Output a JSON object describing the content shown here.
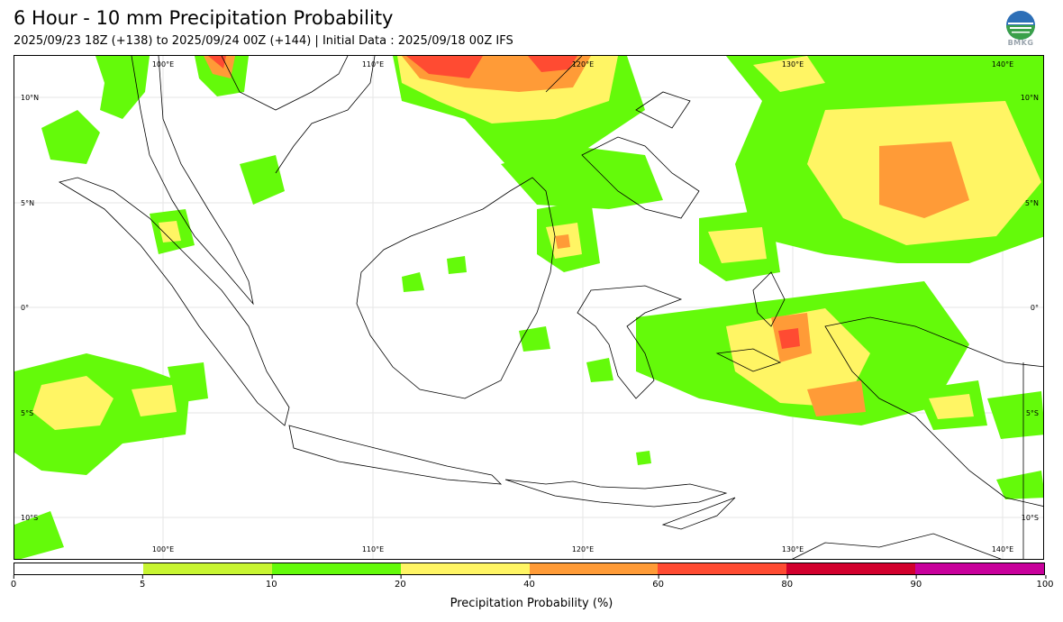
{
  "header": {
    "title": "6 Hour - 10 mm Precipitation Probability",
    "subtitle": "2025/09/23 18Z (+138) to 2025/09/24 00Z (+144) | Initial Data : 2025/09/18 00Z IFS"
  },
  "logo": {
    "text": "BMKG",
    "icon": "bmkg-logo-icon"
  },
  "map": {
    "lon_range": [
      93,
      142
    ],
    "lat_range": [
      -12,
      12
    ],
    "longitude_labels": [
      "100°E",
      "110°E",
      "120°E",
      "130°E",
      "140°E"
    ],
    "latitude_labels": [
      "10°N",
      "5°N",
      "0°",
      "5°S",
      "10°S"
    ],
    "graticule": true
  },
  "colorbar": {
    "label": "Precipitation Probability (%)",
    "ticks": [
      "0",
      "5",
      "10",
      "20",
      "40",
      "60",
      "80",
      "90",
      "100"
    ],
    "bins": [
      {
        "from": 0,
        "to": 5,
        "color": "#ffffff"
      },
      {
        "from": 5,
        "to": 10,
        "color": "#c8f532"
      },
      {
        "from": 10,
        "to": 20,
        "color": "#64fa0a"
      },
      {
        "from": 20,
        "to": 40,
        "color": "#fff564"
      },
      {
        "from": 40,
        "to": 60,
        "color": "#ff9b37"
      },
      {
        "from": 60,
        "to": 80,
        "color": "#ff4b32"
      },
      {
        "from": 80,
        "to": 90,
        "color": "#d2002d"
      },
      {
        "from": 90,
        "to": 100,
        "color": "#c8009b"
      }
    ]
  }
}
